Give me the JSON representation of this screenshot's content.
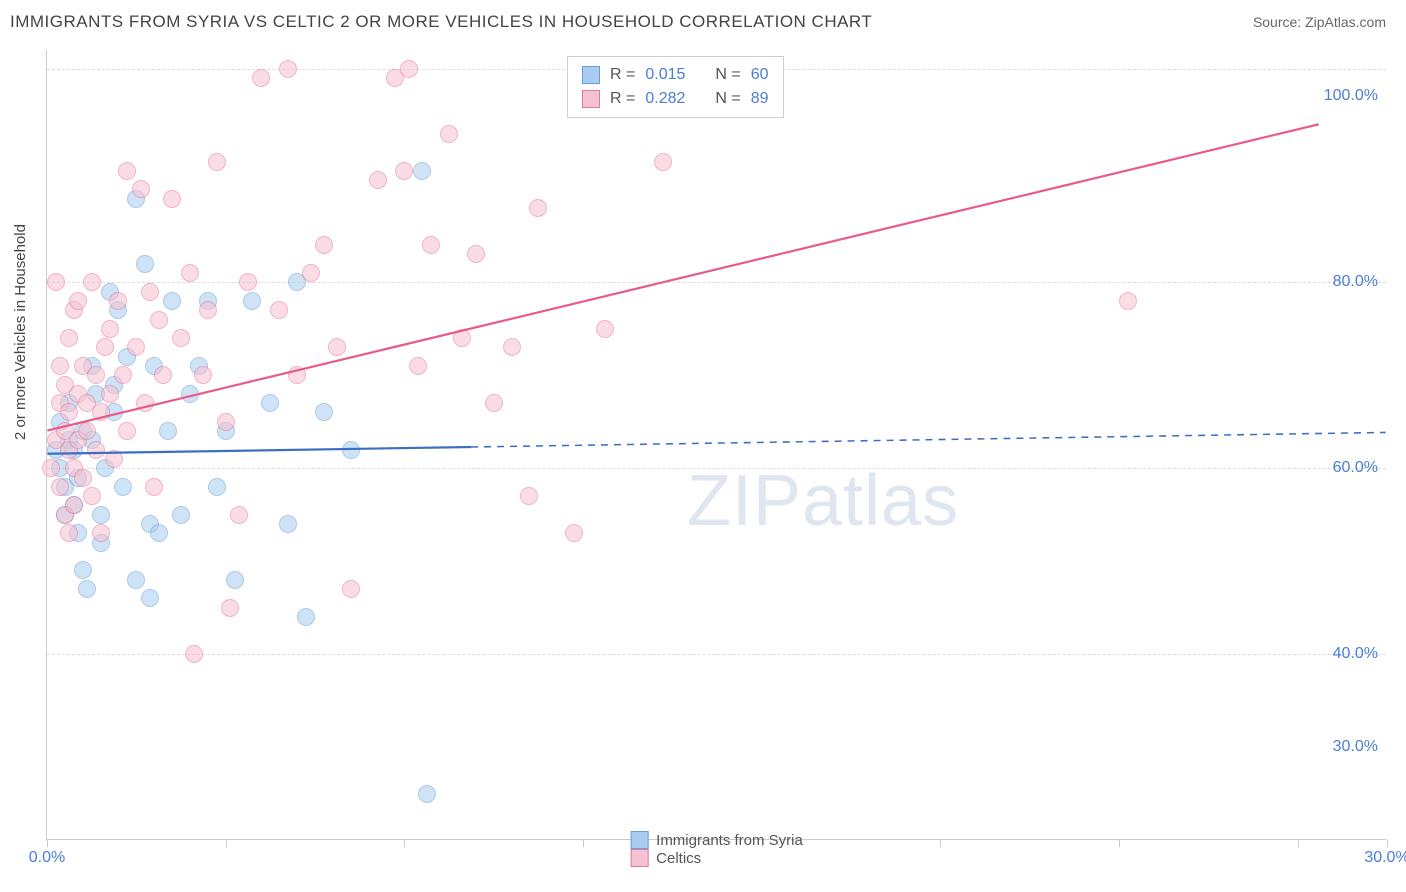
{
  "title": "IMMIGRANTS FROM SYRIA VS CELTIC 2 OR MORE VEHICLES IN HOUSEHOLD CORRELATION CHART",
  "source": "Source: ZipAtlas.com",
  "ylabel": "2 or more Vehicles in Household",
  "watermark": "ZIPatlas",
  "chart": {
    "type": "scatter",
    "xlim": [
      0,
      30
    ],
    "ylim": [
      20,
      105
    ],
    "xtick_positions": [
      0,
      4,
      8,
      12,
      16,
      20,
      24,
      28,
      30
    ],
    "xtick_labels": {
      "0": "0.0%",
      "30": "30.0%"
    },
    "ytick_labels": [
      {
        "v": 30,
        "label": "30.0%"
      },
      {
        "v": 40,
        "label": "40.0%"
      },
      {
        "v": 60,
        "label": "60.0%"
      },
      {
        "v": 80,
        "label": "80.0%"
      },
      {
        "v": 100,
        "label": "100.0%"
      }
    ],
    "ygrid": [
      40,
      60,
      80,
      103
    ],
    "background_color": "#ffffff",
    "grid_color": "#dddddd",
    "axis_color": "#cccccc",
    "marker_radius": 9,
    "marker_opacity": 0.55,
    "series": [
      {
        "name": "Immigrants from Syria",
        "color_fill": "#a9cdf0",
        "color_stroke": "#6a9fd6",
        "r_value": "0.015",
        "n_value": "60",
        "trend": {
          "x1": 0,
          "y1": 61.5,
          "x2": 30,
          "y2": 63.8,
          "solid_until_x": 9.5,
          "color": "#3c6fc2",
          "width": 2.2
        },
        "points": [
          [
            0.2,
            62
          ],
          [
            0.3,
            60
          ],
          [
            0.3,
            65
          ],
          [
            0.4,
            58
          ],
          [
            0.4,
            55
          ],
          [
            0.5,
            63
          ],
          [
            0.5,
            67
          ],
          [
            0.6,
            56
          ],
          [
            0.6,
            62
          ],
          [
            0.7,
            59
          ],
          [
            0.7,
            53
          ],
          [
            0.8,
            64
          ],
          [
            0.8,
            49
          ],
          [
            0.9,
            47
          ],
          [
            1.0,
            63
          ],
          [
            1.0,
            71
          ],
          [
            1.1,
            68
          ],
          [
            1.2,
            55
          ],
          [
            1.2,
            52
          ],
          [
            1.3,
            60
          ],
          [
            1.4,
            79
          ],
          [
            1.5,
            69
          ],
          [
            1.5,
            66
          ],
          [
            1.6,
            77
          ],
          [
            1.7,
            58
          ],
          [
            1.8,
            72
          ],
          [
            2.0,
            89
          ],
          [
            2.0,
            48
          ],
          [
            2.2,
            82
          ],
          [
            2.3,
            46
          ],
          [
            2.3,
            54
          ],
          [
            2.4,
            71
          ],
          [
            2.5,
            53
          ],
          [
            2.7,
            64
          ],
          [
            2.8,
            78
          ],
          [
            3.0,
            55
          ],
          [
            3.2,
            68
          ],
          [
            3.4,
            71
          ],
          [
            3.6,
            78
          ],
          [
            3.8,
            58
          ],
          [
            4.0,
            64
          ],
          [
            4.2,
            48
          ],
          [
            4.6,
            78
          ],
          [
            5.0,
            67
          ],
          [
            5.4,
            54
          ],
          [
            5.6,
            80
          ],
          [
            5.8,
            44
          ],
          [
            6.2,
            66
          ],
          [
            6.8,
            62
          ],
          [
            8.4,
            92
          ],
          [
            8.5,
            25
          ]
        ]
      },
      {
        "name": "Celtics",
        "color_fill": "#f6c1d0",
        "color_stroke": "#e47a9a",
        "r_value": "0.282",
        "n_value": "89",
        "trend": {
          "x1": 0,
          "y1": 64,
          "x2": 28.5,
          "y2": 97,
          "solid_until_x": 28.5,
          "color": "#e85a8a",
          "width": 2.2
        },
        "points": [
          [
            0.1,
            60
          ],
          [
            0.2,
            63
          ],
          [
            0.2,
            80
          ],
          [
            0.3,
            67
          ],
          [
            0.3,
            58
          ],
          [
            0.3,
            71
          ],
          [
            0.4,
            55
          ],
          [
            0.4,
            64
          ],
          [
            0.4,
            69
          ],
          [
            0.5,
            62
          ],
          [
            0.5,
            53
          ],
          [
            0.5,
            66
          ],
          [
            0.5,
            74
          ],
          [
            0.6,
            60
          ],
          [
            0.6,
            77
          ],
          [
            0.6,
            56
          ],
          [
            0.7,
            63
          ],
          [
            0.7,
            78
          ],
          [
            0.7,
            68
          ],
          [
            0.8,
            59
          ],
          [
            0.8,
            71
          ],
          [
            0.9,
            64
          ],
          [
            0.9,
            67
          ],
          [
            1.0,
            57
          ],
          [
            1.0,
            80
          ],
          [
            1.1,
            70
          ],
          [
            1.1,
            62
          ],
          [
            1.2,
            66
          ],
          [
            1.2,
            53
          ],
          [
            1.3,
            73
          ],
          [
            1.4,
            68
          ],
          [
            1.4,
            75
          ],
          [
            1.5,
            61
          ],
          [
            1.6,
            78
          ],
          [
            1.7,
            70
          ],
          [
            1.8,
            64
          ],
          [
            1.8,
            92
          ],
          [
            2.0,
            73
          ],
          [
            2.1,
            90
          ],
          [
            2.2,
            67
          ],
          [
            2.3,
            79
          ],
          [
            2.4,
            58
          ],
          [
            2.5,
            76
          ],
          [
            2.6,
            70
          ],
          [
            2.8,
            89
          ],
          [
            3.0,
            74
          ],
          [
            3.2,
            81
          ],
          [
            3.3,
            40
          ],
          [
            3.5,
            70
          ],
          [
            3.6,
            77
          ],
          [
            3.8,
            93
          ],
          [
            4.0,
            65
          ],
          [
            4.1,
            45
          ],
          [
            4.3,
            55
          ],
          [
            4.5,
            80
          ],
          [
            4.8,
            102
          ],
          [
            5.2,
            77
          ],
          [
            5.4,
            103
          ],
          [
            5.6,
            70
          ],
          [
            5.9,
            81
          ],
          [
            6.2,
            84
          ],
          [
            6.5,
            73
          ],
          [
            6.8,
            47
          ],
          [
            7.4,
            91
          ],
          [
            7.8,
            102
          ],
          [
            8.0,
            92
          ],
          [
            8.1,
            103
          ],
          [
            8.3,
            71
          ],
          [
            8.6,
            84
          ],
          [
            9.0,
            96
          ],
          [
            9.3,
            74
          ],
          [
            9.6,
            83
          ],
          [
            10.0,
            67
          ],
          [
            10.4,
            73
          ],
          [
            10.8,
            57
          ],
          [
            11.0,
            88
          ],
          [
            11.8,
            53
          ],
          [
            12.5,
            75
          ],
          [
            13.8,
            93
          ],
          [
            24.2,
            78
          ]
        ]
      }
    ]
  },
  "legend_bottom": [
    {
      "label": "Immigrants from Syria",
      "fill": "#a9cdf0",
      "stroke": "#6a9fd6"
    },
    {
      "label": "Celtics",
      "fill": "#f6c1d0",
      "stroke": "#e47a9a"
    }
  ]
}
